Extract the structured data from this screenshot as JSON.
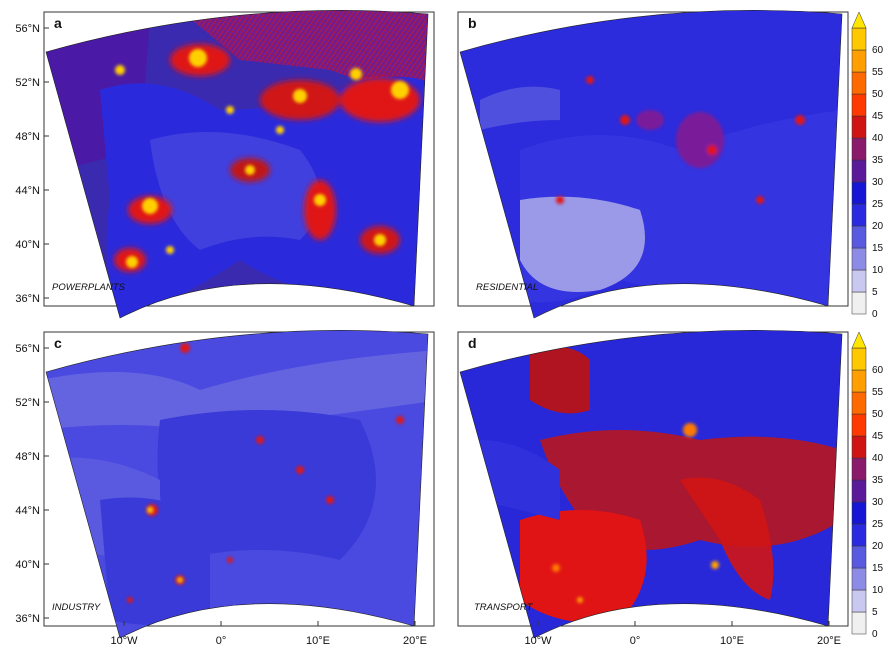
{
  "figure": {
    "panels": [
      {
        "letter": "a",
        "sector": "POWERPLANTS"
      },
      {
        "letter": "b",
        "sector": "RESIDENTIAL"
      },
      {
        "letter": "c",
        "sector": "INDUSTRY"
      },
      {
        "letter": "d",
        "sector": "TRANSPORT"
      }
    ],
    "latitude_ticks": [
      "56°N",
      "52°N",
      "48°N",
      "44°N",
      "40°N",
      "36°N"
    ],
    "longitude_ticks": [
      "10°W",
      "0°",
      "10°E",
      "20°E"
    ],
    "colorbar": {
      "ticks": [
        "0",
        "5",
        "10",
        "15",
        "20",
        "25",
        "30",
        "35",
        "40",
        "45",
        "50",
        "55",
        "60"
      ],
      "colors": [
        "#f0f0f0",
        "#c8c8f0",
        "#8c8ce6",
        "#5a5ae0",
        "#2a2ae0",
        "#1616d4",
        "#5a1a9a",
        "#8a1a6a",
        "#d01414",
        "#ff3a00",
        "#ff6a00",
        "#ff9e00",
        "#ffc800"
      ],
      "extend_color": "#ffe600"
    },
    "colors": {
      "ocean_blue": "#2c2cdc",
      "land_blue": "#3a3ad8",
      "light_blue": "#6a6ae0",
      "hotspot_red": "#e01414",
      "hotspot_yellow": "#ffd000"
    }
  }
}
